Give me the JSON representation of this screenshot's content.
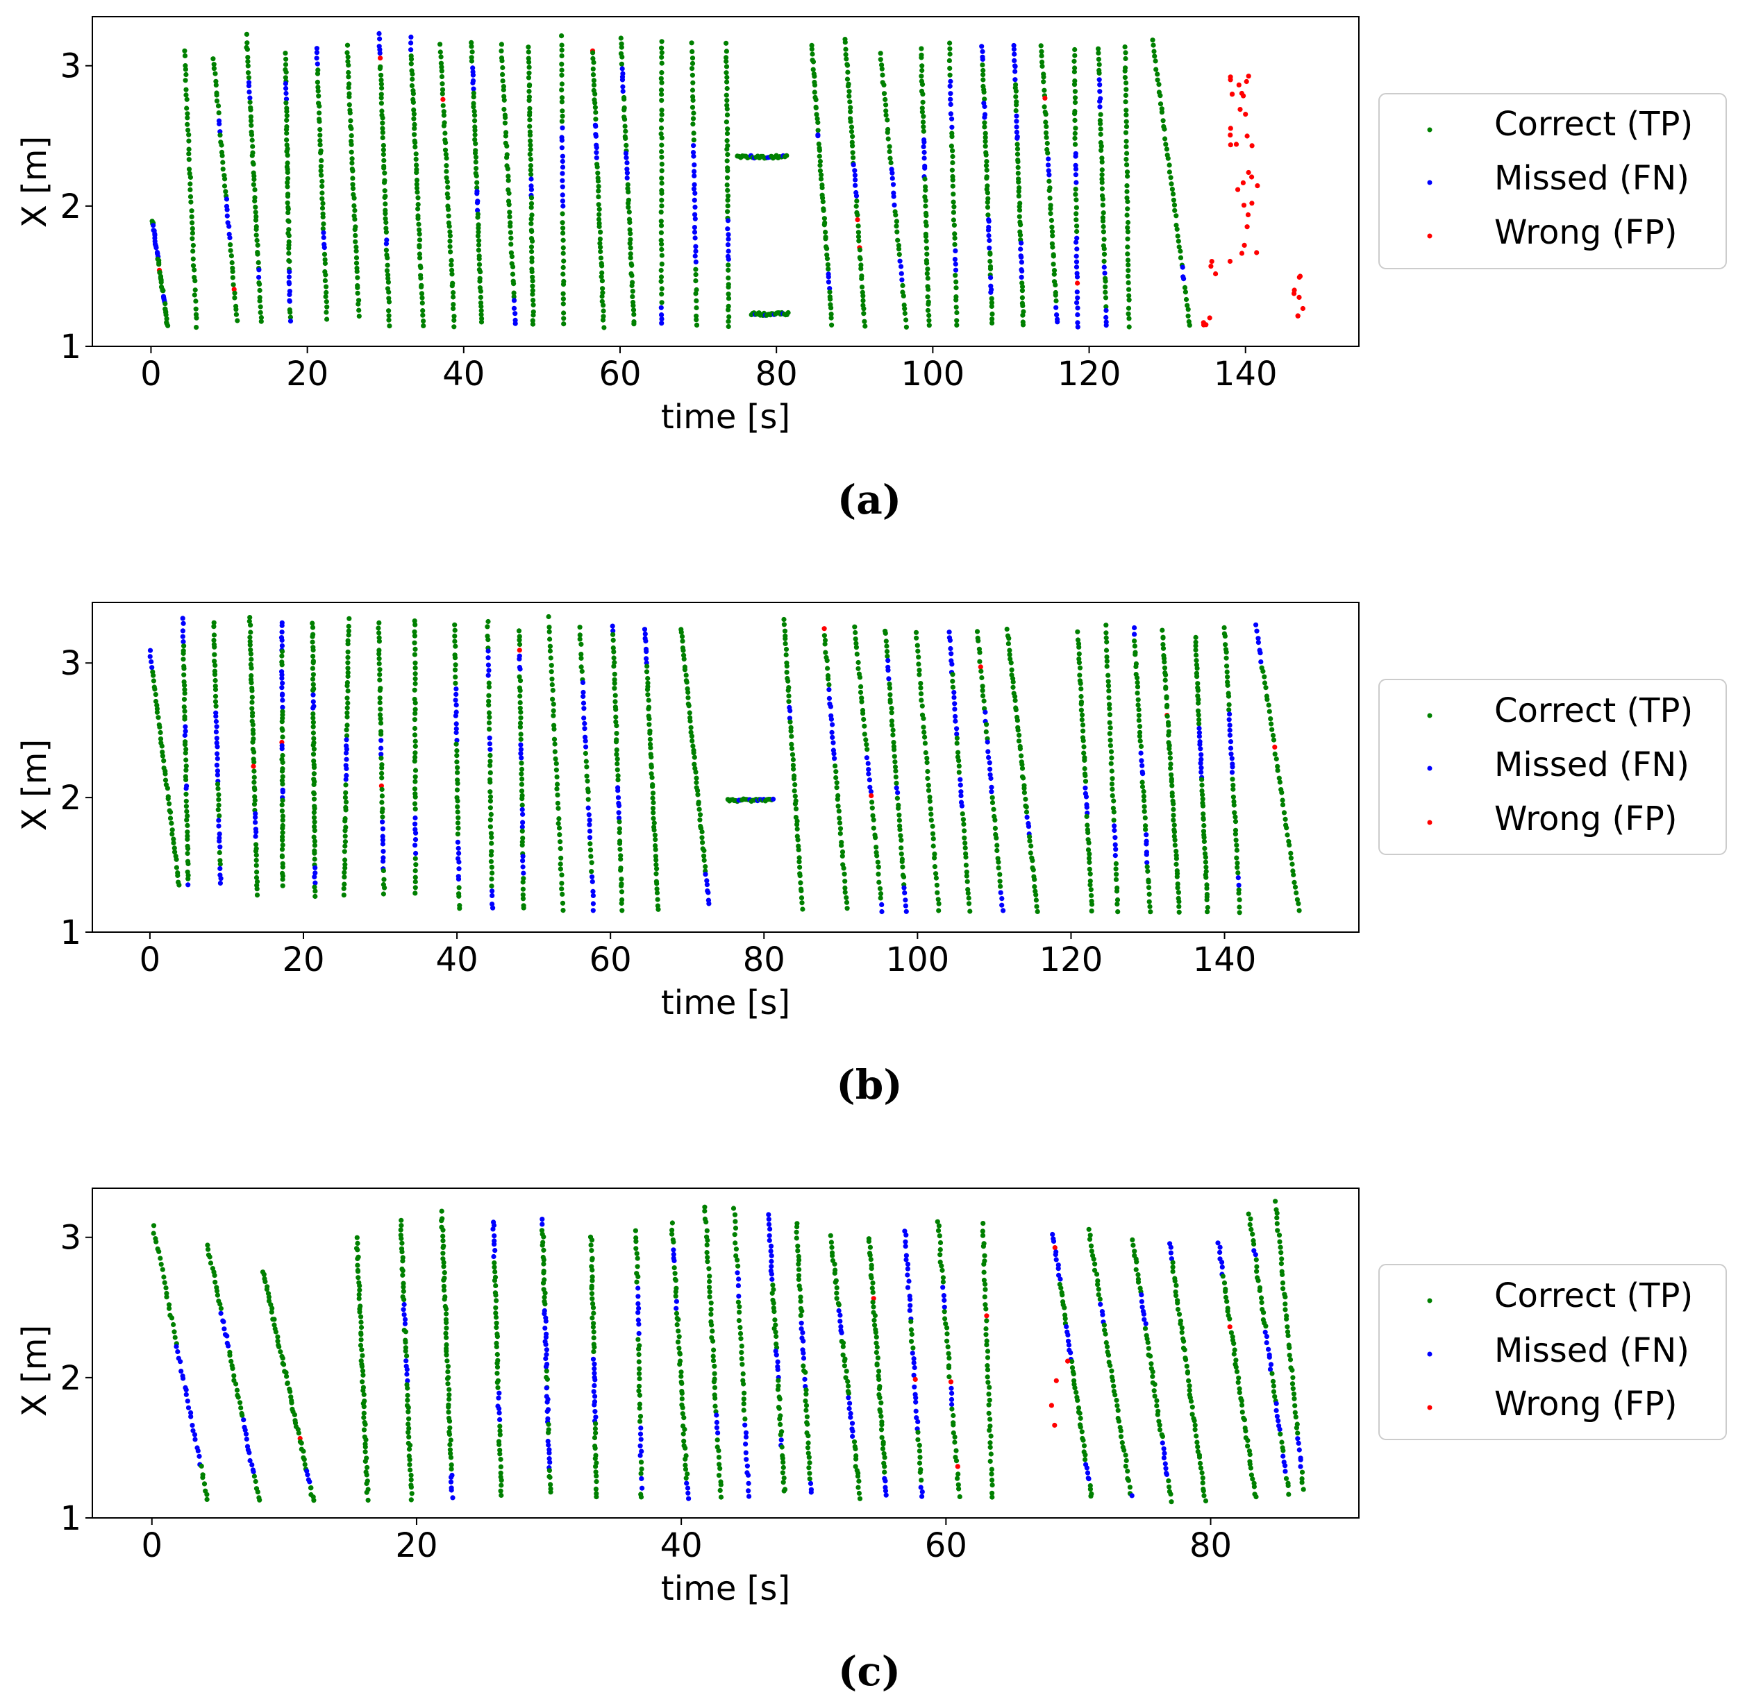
{
  "chart_data": [
    {
      "type": "scatter",
      "panel": "a",
      "caption": "(a)",
      "xlabel": "time [s]",
      "ylabel": "X [m]",
      "xticks": [
        "0",
        "20",
        "40",
        "60",
        "80",
        "100",
        "120",
        "140"
      ],
      "yticks": [
        "1",
        "2",
        "3"
      ],
      "xlim": [
        -7.5,
        154.5
      ],
      "ylim": [
        1.0,
        3.35
      ],
      "legend_position": "right",
      "pattern": {
        "starts": [
          0.2,
          4.3,
          8.0,
          12.2,
          17.2,
          21.2,
          25.1,
          29.2,
          33.2,
          37.0,
          41.0,
          44.8,
          48.3,
          52.5,
          56.5,
          60.1,
          65.3,
          69.2,
          73.6,
          84.5,
          88.8,
          93.3,
          98.5,
          102.1,
          106.3,
          110.4,
          113.9,
          118.1,
          121.2,
          124.6,
          128.1
        ],
        "ends": [
          2.1,
          5.8,
          11.0,
          14.1,
          17.8,
          22.5,
          26.6,
          30.5,
          34.8,
          38.8,
          42.3,
          46.6,
          48.9,
          52.8,
          57.9,
          61.8,
          65.3,
          69.8,
          73.9,
          87.1,
          91.3,
          96.6,
          99.5,
          103.1,
          107.6,
          111.6,
          115.9,
          118.5,
          122.2,
          125.1,
          132.9
        ],
        "top": [
          1.9,
          3.1,
          3.05,
          3.21,
          3.08,
          3.12,
          3.14,
          3.22,
          3.19,
          3.15,
          3.16,
          3.15,
          3.12,
          3.2,
          3.12,
          3.2,
          3.18,
          3.15,
          3.15,
          3.15,
          3.2,
          3.1,
          3.12,
          3.16,
          3.14,
          3.15,
          3.15,
          3.12,
          3.13,
          3.13,
          3.19
        ],
        "bottom": [
          1.15,
          1.15,
          1.18,
          1.18,
          1.18,
          1.2,
          1.22,
          1.16,
          1.16,
          1.15,
          1.16,
          1.15,
          1.15,
          1.15,
          1.14,
          1.15,
          1.15,
          1.14,
          1.14,
          1.16,
          1.15,
          1.14,
          1.14,
          1.14,
          1.17,
          1.15,
          1.16,
          1.14,
          1.14,
          1.14,
          1.14
        ],
        "horizontal_tracks": [
          {
            "x_start": 75.0,
            "x_end": 81.3,
            "y": 2.35
          },
          {
            "x_start": 76.8,
            "x_end": 81.5,
            "y": 1.23
          }
        ],
        "fp_clusters": [
          {
            "x_range": [
              134.5,
              135.5
            ],
            "y_range": [
              1.14,
              1.22
            ],
            "count": 4
          },
          {
            "x_range": [
              135.5,
              136.2
            ],
            "y_range": [
              1.5,
              1.85
            ],
            "count": 3
          },
          {
            "x_range": [
              138.0,
              141.7
            ],
            "y_range": [
              1.55,
              3.0
            ],
            "count": 30
          },
          {
            "x_range": [
              146.2,
              147.4
            ],
            "y_range": [
              1.2,
              1.6
            ],
            "count": 8
          }
        ]
      },
      "series": [
        {
          "name": "Correct (TP)",
          "color": "#008000",
          "class": "tp"
        },
        {
          "name": "Missed (FN)",
          "color": "#0000ff",
          "class": "fn"
        },
        {
          "name": "Wrong (FP)",
          "color": "#ff0000",
          "class": "fp"
        }
      ]
    },
    {
      "type": "scatter",
      "panel": "b",
      "caption": "(b)",
      "xlabel": "time [s]",
      "ylabel": "X [m]",
      "xticks": [
        "0",
        "20",
        "40",
        "60",
        "80",
        "100",
        "120",
        "140"
      ],
      "yticks": [
        "1",
        "2",
        "3"
      ],
      "xlim": [
        -7.5,
        157.5
      ],
      "ylim": [
        1.0,
        3.45
      ],
      "legend_position": "right",
      "pattern": {
        "starts": [
          0.0,
          4.3,
          8.3,
          13.0,
          17.2,
          21.2,
          25.9,
          29.8,
          34.5,
          39.7,
          44.0,
          48.1,
          52.0,
          56.0,
          60.3,
          64.5,
          69.2,
          82.6,
          87.8,
          91.8,
          95.8,
          99.8,
          104.1,
          107.8,
          111.7,
          120.9,
          124.5,
          128.2,
          131.9,
          136.2,
          140.0,
          144.1
        ],
        "ends": [
          3.8,
          5.0,
          9.2,
          14.0,
          17.3,
          21.5,
          25.3,
          30.5,
          34.6,
          40.3,
          44.6,
          48.7,
          53.8,
          57.8,
          61.5,
          66.2,
          72.8,
          85.0,
          90.8,
          95.4,
          98.5,
          102.8,
          106.8,
          111.1,
          115.6,
          122.7,
          126.1,
          130.3,
          134.1,
          137.8,
          142.0,
          149.7
        ],
        "top": [
          3.08,
          3.32,
          3.3,
          3.34,
          3.3,
          3.29,
          3.32,
          3.31,
          3.32,
          3.28,
          3.3,
          3.25,
          3.33,
          3.27,
          3.28,
          3.26,
          3.26,
          3.32,
          3.26,
          3.28,
          3.25,
          3.24,
          3.24,
          3.24,
          3.25,
          3.22,
          3.28,
          3.25,
          3.24,
          3.19,
          3.27,
          3.28
        ],
        "bottom": [
          1.35,
          1.35,
          1.35,
          1.28,
          1.35,
          1.28,
          1.28,
          1.28,
          1.28,
          1.17,
          1.17,
          1.17,
          1.17,
          1.17,
          1.17,
          1.17,
          1.21,
          1.18,
          1.17,
          1.16,
          1.16,
          1.16,
          1.16,
          1.16,
          1.16,
          1.16,
          1.16,
          1.16,
          1.16,
          1.16,
          1.16,
          1.16
        ],
        "horizontal_tracks": [
          {
            "x_start": 75.3,
            "x_end": 81.2,
            "y": 1.98
          }
        ],
        "fp_clusters": []
      },
      "series": [
        {
          "name": "Correct (TP)",
          "color": "#008000",
          "class": "tp"
        },
        {
          "name": "Missed (FN)",
          "color": "#0000ff",
          "class": "fn"
        },
        {
          "name": "Wrong (FP)",
          "color": "#ff0000",
          "class": "fp"
        }
      ]
    },
    {
      "type": "scatter",
      "panel": "c",
      "caption": "(c)",
      "xlabel": "time [s]",
      "ylabel": "X [m]",
      "xticks": [
        "0",
        "20",
        "40",
        "60",
        "80"
      ],
      "yticks": [
        "1",
        "2",
        "3"
      ],
      "xlim": [
        -4.5,
        91.2
      ],
      "ylim": [
        1.0,
        3.35
      ],
      "legend_position": "right",
      "pattern": {
        "starts": [
          0.1,
          4.2,
          8.4,
          15.5,
          18.8,
          21.9,
          25.8,
          29.5,
          33.2,
          36.6,
          39.3,
          41.8,
          44.0,
          46.6,
          48.7,
          51.3,
          54.2,
          56.9,
          59.4,
          62.8,
          68.1,
          70.8,
          74.1,
          76.9,
          80.6,
          82.9,
          84.9
        ],
        "ends": [
          4.2,
          8.1,
          12.2,
          16.3,
          19.6,
          22.7,
          26.4,
          30.1,
          33.6,
          37.0,
          40.5,
          43.0,
          45.1,
          47.8,
          49.8,
          53.5,
          55.5,
          58.2,
          61.0,
          63.5,
          71.0,
          74.0,
          77.0,
          79.6,
          83.4,
          85.9,
          87.0
        ],
        "top": [
          3.08,
          2.95,
          2.75,
          3.0,
          3.12,
          3.18,
          3.12,
          3.12,
          3.0,
          3.05,
          3.1,
          3.22,
          3.2,
          3.15,
          3.1,
          3.0,
          3.0,
          3.05,
          3.12,
          3.1,
          3.02,
          3.05,
          2.98,
          2.95,
          2.95,
          3.16,
          3.25
        ],
        "bottom": [
          1.12,
          1.12,
          1.12,
          1.14,
          1.14,
          1.15,
          1.15,
          1.18,
          1.15,
          1.14,
          1.14,
          1.15,
          1.15,
          1.18,
          1.17,
          1.15,
          1.16,
          1.15,
          1.16,
          1.14,
          1.14,
          1.15,
          1.13,
          1.12,
          1.14,
          1.18,
          1.2
        ],
        "horizontal_tracks": [],
        "fp_clusters": [
          {
            "x_range": [
              67.8,
              69.2
            ],
            "y_range": [
              1.62,
              2.12
            ],
            "count": 4
          }
        ]
      },
      "series": [
        {
          "name": "Correct (TP)",
          "color": "#008000",
          "class": "tp"
        },
        {
          "name": "Missed (FN)",
          "color": "#0000ff",
          "class": "fn"
        },
        {
          "name": "Wrong (FP)",
          "color": "#ff0000",
          "class": "fp"
        }
      ]
    }
  ]
}
